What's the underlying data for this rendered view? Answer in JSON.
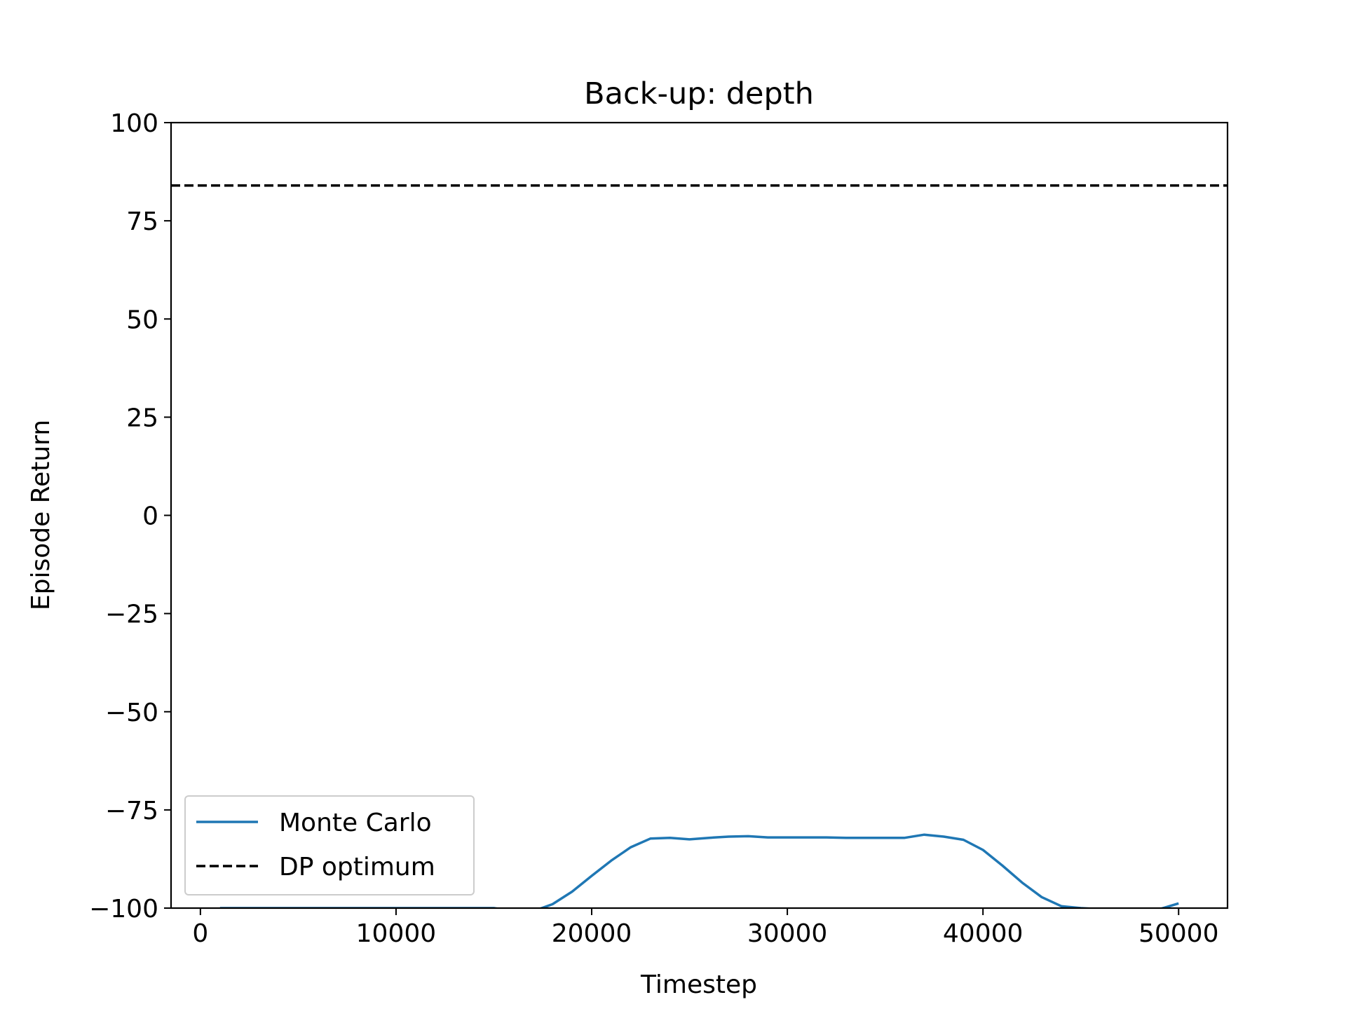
{
  "chart_data": {
    "type": "line",
    "title": "Back-up: depth",
    "xlabel": "Timestep",
    "ylabel": "Episode Return",
    "xlim": [
      -1500,
      52500
    ],
    "ylim": [
      -100,
      100
    ],
    "xticks": [
      0,
      10000,
      20000,
      30000,
      40000,
      50000
    ],
    "xtick_labels": [
      "0",
      "10000",
      "20000",
      "30000",
      "40000",
      "50000"
    ],
    "yticks": [
      -100,
      -75,
      -50,
      -25,
      0,
      25,
      50,
      75,
      100
    ],
    "ytick_labels": [
      "−100",
      "−75",
      "−50",
      "−25",
      "0",
      "25",
      "50",
      "75",
      "100"
    ],
    "grid": false,
    "legend_position": "lower-left",
    "series": [
      {
        "name": "Monte Carlo",
        "color": "#1f77b4",
        "style": "solid",
        "x": [
          1000,
          2000,
          3000,
          4000,
          5000,
          6000,
          7000,
          8000,
          9000,
          10000,
          11000,
          12000,
          13000,
          14000,
          15000,
          16000,
          17000,
          18000,
          19000,
          20000,
          21000,
          22000,
          23000,
          24000,
          25000,
          26000,
          27000,
          28000,
          29000,
          30000,
          31000,
          32000,
          33000,
          34000,
          35000,
          36000,
          37000,
          38000,
          39000,
          40000,
          41000,
          42000,
          43000,
          44000,
          45000,
          46000,
          47000,
          48000,
          49000,
          50000
        ],
        "y": [
          -100,
          -100,
          -100,
          -100,
          -100,
          -100,
          -100,
          -100,
          -100,
          -100,
          -100,
          -100,
          -100,
          -100,
          -100,
          -100.8,
          -100.8,
          -99,
          -95.8,
          -91.8,
          -87.9,
          -84.5,
          -82.3,
          -82.1,
          -82.5,
          -82.1,
          -81.8,
          -81.7,
          -82,
          -82,
          -82,
          -82,
          -82.1,
          -82.1,
          -82.1,
          -82.1,
          -81.3,
          -81.8,
          -82.6,
          -85.2,
          -89.2,
          -93.5,
          -97.2,
          -99.5,
          -100,
          -100.3,
          -100.3,
          -100.3,
          -100.3,
          -98.8
        ]
      },
      {
        "name": "DP optimum",
        "color": "#000000",
        "style": "dashed",
        "x": [
          -1500,
          52500
        ],
        "y": [
          84,
          84
        ]
      }
    ]
  }
}
